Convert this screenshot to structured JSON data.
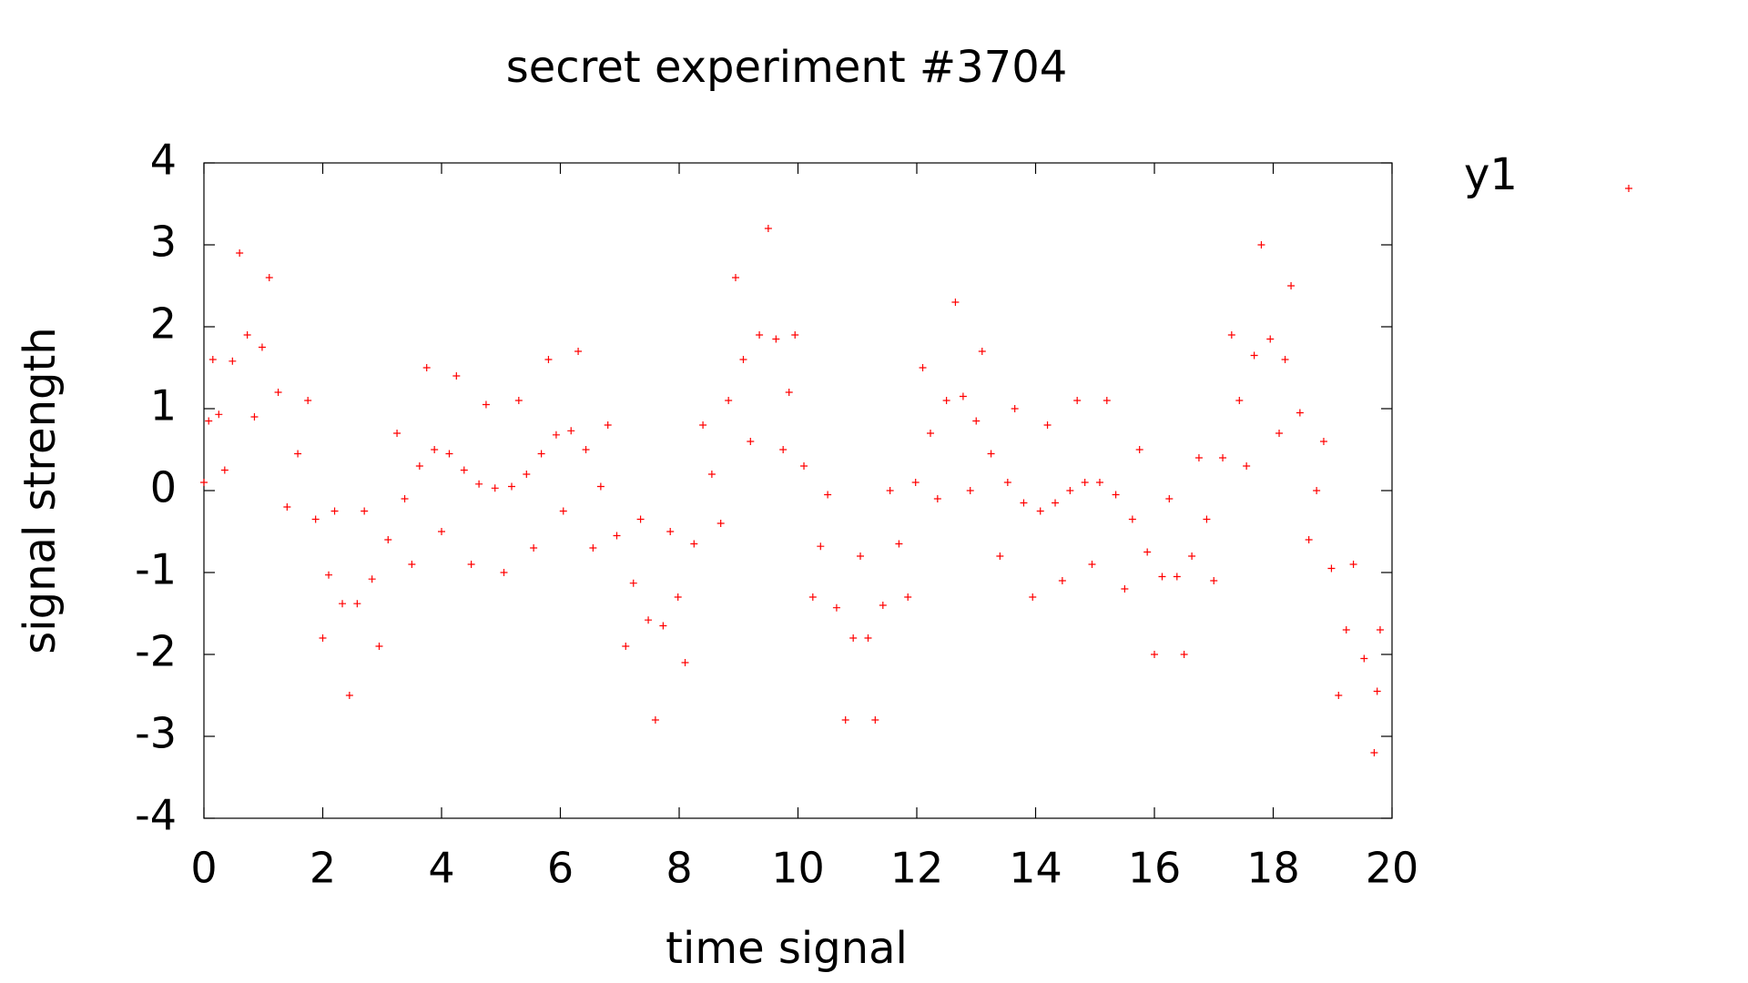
{
  "chart_data": {
    "type": "scatter",
    "title": "secret experiment #3704",
    "x_label": "time signal",
    "y_label": "signal strength",
    "xlim": [
      0,
      20
    ],
    "ylim": [
      -4,
      4
    ],
    "xticks": [
      0,
      2,
      4,
      6,
      8,
      10,
      12,
      14,
      16,
      18,
      20
    ],
    "yticks": [
      -4,
      -3,
      -2,
      -1,
      0,
      1,
      2,
      3,
      4
    ],
    "grid": false,
    "legend": "outside-right",
    "series": [
      {
        "name": "y1",
        "color": "#ff0000",
        "x": [
          0,
          0.08,
          0.15,
          0.25,
          0.35,
          0.48,
          0.6,
          0.73,
          0.85,
          0.98,
          1.1,
          1.25,
          1.4,
          1.58,
          1.75,
          1.88,
          2,
          2.1,
          2.2,
          2.33,
          2.45,
          2.58,
          2.7,
          2.83,
          2.95,
          3.1,
          3.25,
          3.38,
          3.5,
          3.63,
          3.75,
          3.88,
          4,
          4.13,
          4.25,
          4.38,
          4.5,
          4.63,
          4.75,
          4.9,
          5.05,
          5.18,
          5.3,
          5.43,
          5.55,
          5.68,
          5.8,
          5.93,
          6.05,
          6.18,
          6.3,
          6.43,
          6.55,
          6.68,
          6.8,
          6.95,
          7.1,
          7.23,
          7.35,
          7.48,
          7.6,
          7.73,
          7.85,
          7.98,
          8.1,
          8.25,
          8.4,
          8.55,
          8.7,
          8.83,
          8.95,
          9.08,
          9.2,
          9.35,
          9.5,
          9.63,
          9.75,
          9.85,
          9.95,
          10.1,
          10.25,
          10.38,
          10.5,
          10.65,
          10.8,
          10.93,
          11.05,
          11.18,
          11.3,
          11.43,
          11.55,
          11.7,
          11.85,
          11.98,
          12.1,
          12.23,
          12.35,
          12.5,
          12.65,
          12.78,
          12.9,
          13,
          13.1,
          13.25,
          13.4,
          13.53,
          13.65,
          13.8,
          13.95,
          14.08,
          14.2,
          14.33,
          14.45,
          14.58,
          14.7,
          14.83,
          14.95,
          15.08,
          15.2,
          15.35,
          15.5,
          15.63,
          15.75,
          15.88,
          16,
          16.13,
          16.25,
          16.38,
          16.5,
          16.63,
          16.75,
          16.88,
          17,
          17.15,
          17.3,
          17.43,
          17.55,
          17.68,
          17.8,
          17.95,
          18.1,
          18.2,
          18.3,
          18.45,
          18.6,
          18.73,
          18.85,
          18.98,
          19.1,
          19.23,
          19.35,
          19.53,
          19.7,
          19.75,
          19.8
        ],
        "values": [
          0.1,
          0.85,
          1.6,
          0.93,
          0.25,
          1.58,
          2.9,
          1.9,
          0.9,
          1.75,
          2.6,
          1.2,
          -0.2,
          0.45,
          1.1,
          -0.35,
          -1.8,
          -1.03,
          -0.25,
          -1.38,
          -2.5,
          -1.38,
          -0.25,
          -1.08,
          -1.9,
          -0.6,
          0.7,
          -0.1,
          -0.9,
          0.3,
          1.5,
          0.5,
          -0.5,
          0.45,
          1.4,
          0.25,
          -0.9,
          0.08,
          1.05,
          0.03,
          -1.0,
          0.05,
          1.1,
          0.2,
          -0.7,
          0.45,
          1.6,
          0.68,
          -0.25,
          0.73,
          1.7,
          0.5,
          -0.7,
          0.05,
          0.8,
          -0.55,
          -1.9,
          -1.13,
          -0.35,
          -1.58,
          -2.8,
          -1.65,
          -0.5,
          -1.3,
          -2.1,
          -0.65,
          0.8,
          0.2,
          -0.4,
          1.1,
          2.6,
          1.6,
          0.6,
          1.9,
          3.2,
          1.85,
          0.5,
          1.2,
          1.9,
          0.3,
          -1.3,
          -0.68,
          -0.05,
          -1.43,
          -2.8,
          -1.8,
          -0.8,
          -1.8,
          -2.8,
          -1.4,
          0,
          -0.65,
          -1.3,
          0.1,
          1.5,
          0.7,
          -0.1,
          1.1,
          2.3,
          1.15,
          0,
          0.85,
          1.7,
          0.45,
          -0.8,
          0.1,
          1.0,
          -0.15,
          -1.3,
          -0.25,
          0.8,
          -0.15,
          -1.1,
          0,
          1.1,
          0.1,
          -0.9,
          0.1,
          1.1,
          -0.05,
          -1.2,
          -0.35,
          0.5,
          -0.75,
          -2.0,
          -1.05,
          -0.1,
          -1.05,
          -2.0,
          -0.8,
          0.4,
          -0.35,
          -1.1,
          0.4,
          1.9,
          1.1,
          0.3,
          1.65,
          3.0,
          1.85,
          0.7,
          1.6,
          2.5,
          0.95,
          -0.6,
          0,
          0.6,
          -0.95,
          -2.5,
          -1.7,
          -0.9,
          -2.05,
          -3.2,
          -2.45,
          -1.7
        ]
      }
    ]
  }
}
